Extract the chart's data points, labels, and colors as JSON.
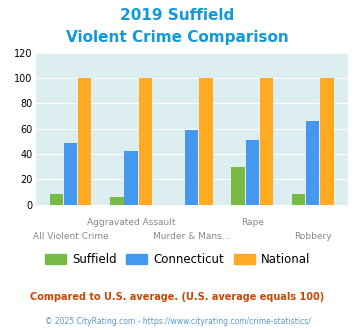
{
  "title_line1": "2019 Suffield",
  "title_line2": "Violent Crime Comparison",
  "suffield": [
    8,
    6,
    0,
    30,
    8
  ],
  "connecticut": [
    49,
    42,
    59,
    51,
    66
  ],
  "national": [
    100,
    100,
    100,
    100,
    100
  ],
  "color_suffield": "#77bb44",
  "color_connecticut": "#4499ee",
  "color_national": "#ffaa22",
  "ylim": [
    0,
    120
  ],
  "yticks": [
    0,
    20,
    40,
    60,
    80,
    100,
    120
  ],
  "background_color": "#ddeef0",
  "title_color": "#1199dd",
  "top_row_labels": {
    "1": "Aggravated Assault",
    "3": "Rape"
  },
  "bottom_row_labels": {
    "0": "All Violent Crime",
    "2": "Murder & Mans...",
    "4": "Robbery"
  },
  "footnote1": "Compared to U.S. average. (U.S. average equals 100)",
  "footnote2": "© 2025 CityRating.com - https://www.cityrating.com/crime-statistics/",
  "footnote1_color": "#cc4400",
  "footnote2_color": "#5599cc"
}
